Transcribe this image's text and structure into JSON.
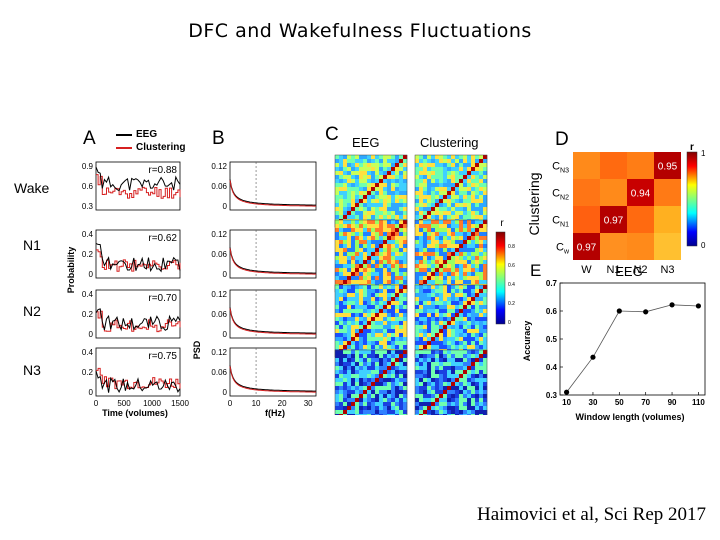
{
  "slide": {
    "title": "DFC and Wakefulness Fluctuations",
    "citation": "Haimovici et al, Sci Rep 2017"
  },
  "colors": {
    "eeg": "#000000",
    "clustering": "#d62020"
  },
  "panels": {
    "A": {
      "letter": "A",
      "legend": [
        "EEG",
        "Clustering"
      ],
      "ylabel": "Probability",
      "xlabel": "Time (volumes)",
      "xticks": [
        "0",
        "500",
        "1000",
        "1500"
      ],
      "rows": [
        {
          "stage": "Wake",
          "r": "r=0.88",
          "yticks": [
            "0.9",
            "0.6",
            "0.3"
          ]
        },
        {
          "stage": "N1",
          "r": "r=0.62",
          "yticks": [
            "0.4",
            "0.2",
            "0"
          ]
        },
        {
          "stage": "N2",
          "r": "r=0.70",
          "yticks": [
            "0.4",
            "0.2",
            "0"
          ]
        },
        {
          "stage": "N3",
          "r": "r=0.75",
          "yticks": [
            "0.4",
            "0.2",
            "0"
          ]
        }
      ]
    },
    "B": {
      "letter": "B",
      "ylabel": "PSD",
      "xlabel": "f(Hz)",
      "xticks": [
        "0",
        "10",
        "20",
        "30"
      ],
      "yticks": [
        "0.12",
        "0.06",
        "0"
      ]
    },
    "C": {
      "letter": "C",
      "headers": [
        "EEG",
        "Clustering"
      ],
      "colorbar_label": "r",
      "colorbar_ticks": [
        "0.8",
        "0.6",
        "0.4",
        "0.2",
        "0"
      ]
    },
    "D": {
      "letter": "D",
      "ylabel": "Clustering",
      "xlabel": "EEG",
      "row_labels": [
        "C_N3",
        "C_N2",
        "C_N1",
        "C_w"
      ],
      "col_labels": [
        "W",
        "N1",
        "N2",
        "N3"
      ],
      "colorbar_label": "r",
      "colorbar_ticks": [
        "1",
        "0"
      ],
      "diag_values": [
        "0.97",
        "0.97",
        "0.94",
        "0.95"
      ]
    }
  },
  "chart_data": [
    {
      "type": "line",
      "panel": "E",
      "title": "E",
      "xlabel": "Window length (volumes)",
      "ylabel": "Accuracy",
      "x": [
        10,
        30,
        50,
        70,
        90,
        110
      ],
      "y": [
        0.31,
        0.435,
        0.6,
        0.597,
        0.622,
        0.618
      ],
      "xlim": [
        5,
        115
      ],
      "ylim": [
        0.3,
        0.7
      ],
      "xticks": [
        10,
        30,
        50,
        70,
        90,
        110
      ],
      "yticks": [
        0.3,
        0.4,
        0.5,
        0.6,
        0.7
      ],
      "grid": false
    },
    {
      "type": "heatmap",
      "panel": "D",
      "rows": [
        "C_N3",
        "C_N2",
        "C_N1",
        "C_w"
      ],
      "columns": [
        "W",
        "N1",
        "N2",
        "N3"
      ],
      "annotated_values": {
        "C_w/W": 0.97,
        "C_N1/N1": 0.97,
        "C_N2/N2": 0.94,
        "C_N3/N3": 0.95
      },
      "clim": [
        0,
        1
      ]
    }
  ]
}
